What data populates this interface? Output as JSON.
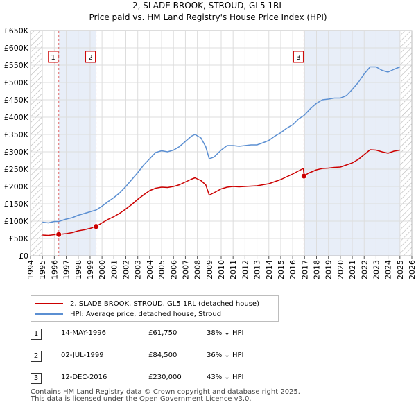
{
  "header": {
    "title_line1": "2, SLADE BROOK, STROUD, GL5 1RL",
    "title_line2": "Price paid vs. HM Land Registry's House Price Index (HPI)"
  },
  "colors": {
    "price_line": "#cc0000",
    "hpi_line": "#5b8fd2",
    "shade": "#e8eef8",
    "hatch": "#b4b4b4",
    "grid": "#dddddd",
    "marker_box_border": "#cc0000",
    "vline": "#e06666"
  },
  "chart_data": {
    "type": "line",
    "x_range": [
      1994.0,
      2026.0
    ],
    "y_range": [
      0,
      650000
    ],
    "y_ticks": [
      {
        "value": 0,
        "label": "£0"
      },
      {
        "value": 50000,
        "label": "£50K"
      },
      {
        "value": 100000,
        "label": "£100K"
      },
      {
        "value": 150000,
        "label": "£150K"
      },
      {
        "value": 200000,
        "label": "£200K"
      },
      {
        "value": 250000,
        "label": "£250K"
      },
      {
        "value": 300000,
        "label": "£300K"
      },
      {
        "value": 350000,
        "label": "£350K"
      },
      {
        "value": 400000,
        "label": "£400K"
      },
      {
        "value": 450000,
        "label": "£450K"
      },
      {
        "value": 500000,
        "label": "£500K"
      },
      {
        "value": 550000,
        "label": "£550K"
      },
      {
        "value": 600000,
        "label": "£600K"
      },
      {
        "value": 650000,
        "label": "£650K"
      }
    ],
    "x_ticks": [
      1994,
      1995,
      1996,
      1997,
      1998,
      1999,
      2000,
      2001,
      2002,
      2003,
      2004,
      2005,
      2006,
      2007,
      2008,
      2009,
      2010,
      2011,
      2012,
      2013,
      2014,
      2015,
      2016,
      2017,
      2018,
      2019,
      2020,
      2021,
      2022,
      2023,
      2024,
      2025,
      2026
    ],
    "data_start": 1995.0,
    "data_end": 2025.0,
    "series": [
      {
        "name": "HPI: Average price, detached house, Stroud",
        "points": [
          [
            1995.0,
            97000
          ],
          [
            1995.5,
            95000
          ],
          [
            1996.0,
            99000
          ],
          [
            1996.37,
            99000
          ],
          [
            1997.0,
            106000
          ],
          [
            1997.5,
            110000
          ],
          [
            1998.0,
            117000
          ],
          [
            1998.5,
            122000
          ],
          [
            1999.0,
            127000
          ],
          [
            1999.5,
            132000
          ],
          [
            2000.0,
            143000
          ],
          [
            2000.5,
            156000
          ],
          [
            2001.0,
            168000
          ],
          [
            2001.5,
            182000
          ],
          [
            2002.0,
            200000
          ],
          [
            2002.5,
            220000
          ],
          [
            2003.0,
            240000
          ],
          [
            2003.5,
            262000
          ],
          [
            2004.0,
            280000
          ],
          [
            2004.5,
            298000
          ],
          [
            2005.0,
            303000
          ],
          [
            2005.5,
            300000
          ],
          [
            2006.0,
            305000
          ],
          [
            2006.5,
            315000
          ],
          [
            2007.0,
            330000
          ],
          [
            2007.5,
            345000
          ],
          [
            2007.8,
            350000
          ],
          [
            2008.3,
            340000
          ],
          [
            2008.7,
            315000
          ],
          [
            2009.0,
            280000
          ],
          [
            2009.4,
            285000
          ],
          [
            2010.0,
            305000
          ],
          [
            2010.5,
            318000
          ],
          [
            2011.0,
            318000
          ],
          [
            2011.5,
            316000
          ],
          [
            2012.0,
            318000
          ],
          [
            2012.5,
            320000
          ],
          [
            2013.0,
            320000
          ],
          [
            2013.5,
            326000
          ],
          [
            2014.0,
            333000
          ],
          [
            2014.5,
            345000
          ],
          [
            2015.0,
            355000
          ],
          [
            2015.5,
            368000
          ],
          [
            2016.0,
            378000
          ],
          [
            2016.5,
            395000
          ],
          [
            2016.95,
            405000
          ],
          [
            2017.5,
            425000
          ],
          [
            2018.0,
            440000
          ],
          [
            2018.5,
            450000
          ],
          [
            2019.0,
            452000
          ],
          [
            2019.5,
            455000
          ],
          [
            2020.0,
            455000
          ],
          [
            2020.5,
            462000
          ],
          [
            2021.0,
            480000
          ],
          [
            2021.5,
            500000
          ],
          [
            2022.0,
            525000
          ],
          [
            2022.5,
            545000
          ],
          [
            2023.0,
            545000
          ],
          [
            2023.5,
            535000
          ],
          [
            2024.0,
            530000
          ],
          [
            2024.5,
            538000
          ],
          [
            2025.0,
            545000
          ]
        ]
      },
      {
        "name": "2, SLADE BROOK, STROUD, GL5 1RL (detached house)",
        "points": [
          [
            1995.0,
            60000
          ],
          [
            1995.5,
            59000
          ],
          [
            1996.0,
            61000
          ],
          [
            1996.37,
            61750
          ],
          [
            1997.0,
            64000
          ],
          [
            1997.5,
            67000
          ],
          [
            1998.0,
            72000
          ],
          [
            1998.5,
            75000
          ],
          [
            1999.0,
            79000
          ],
          [
            1999.5,
            84500
          ],
          [
            2000.0,
            95000
          ],
          [
            2000.5,
            105000
          ],
          [
            2001.0,
            113000
          ],
          [
            2001.5,
            123000
          ],
          [
            2002.0,
            135000
          ],
          [
            2002.5,
            148000
          ],
          [
            2003.0,
            163000
          ],
          [
            2003.5,
            176000
          ],
          [
            2004.0,
            188000
          ],
          [
            2004.5,
            195000
          ],
          [
            2005.0,
            198000
          ],
          [
            2005.5,
            197000
          ],
          [
            2006.0,
            200000
          ],
          [
            2006.5,
            205000
          ],
          [
            2007.0,
            213000
          ],
          [
            2007.5,
            221000
          ],
          [
            2007.8,
            225000
          ],
          [
            2008.3,
            217000
          ],
          [
            2008.7,
            205000
          ],
          [
            2009.0,
            175000
          ],
          [
            2009.4,
            182000
          ],
          [
            2010.0,
            193000
          ],
          [
            2010.5,
            198000
          ],
          [
            2011.0,
            200000
          ],
          [
            2011.5,
            199000
          ],
          [
            2012.0,
            200000
          ],
          [
            2012.5,
            201000
          ],
          [
            2013.0,
            202000
          ],
          [
            2013.5,
            205000
          ],
          [
            2014.0,
            208000
          ],
          [
            2014.5,
            214000
          ],
          [
            2015.0,
            220000
          ],
          [
            2015.5,
            228000
          ],
          [
            2016.0,
            236000
          ],
          [
            2016.5,
            245000
          ],
          [
            2016.9,
            252000
          ],
          [
            2016.95,
            230000
          ],
          [
            2017.3,
            238000
          ],
          [
            2018.0,
            248000
          ],
          [
            2018.5,
            252000
          ],
          [
            2019.0,
            253000
          ],
          [
            2019.5,
            255000
          ],
          [
            2020.0,
            256000
          ],
          [
            2020.5,
            262000
          ],
          [
            2021.0,
            268000
          ],
          [
            2021.5,
            278000
          ],
          [
            2022.0,
            292000
          ],
          [
            2022.5,
            306000
          ],
          [
            2023.0,
            305000
          ],
          [
            2023.5,
            300000
          ],
          [
            2024.0,
            296000
          ],
          [
            2024.5,
            302000
          ],
          [
            2025.0,
            305000
          ]
        ]
      }
    ],
    "sales": [
      {
        "id": "1",
        "x": 1996.37,
        "y": 61750
      },
      {
        "id": "2",
        "x": 1999.5,
        "y": 84500
      },
      {
        "id": "3",
        "x": 2016.95,
        "y": 230000
      }
    ]
  },
  "legend": {
    "price_label": "2, SLADE BROOK, STROUD, GL5 1RL (detached house)",
    "hpi_label": "HPI: Average price, detached house, Stroud"
  },
  "sales_table": [
    {
      "num": "1",
      "date": "14-MAY-1996",
      "price": "£61,750",
      "hpi": "38% ↓ HPI"
    },
    {
      "num": "2",
      "date": "02-JUL-1999",
      "price": "£84,500",
      "hpi": "36% ↓ HPI"
    },
    {
      "num": "3",
      "date": "12-DEC-2016",
      "price": "£230,000",
      "hpi": "43% ↓ HPI"
    }
  ],
  "footer": {
    "line1": "Contains HM Land Registry data © Crown copyright and database right 2025.",
    "line2": "This data is licensed under the Open Government Licence v3.0."
  }
}
